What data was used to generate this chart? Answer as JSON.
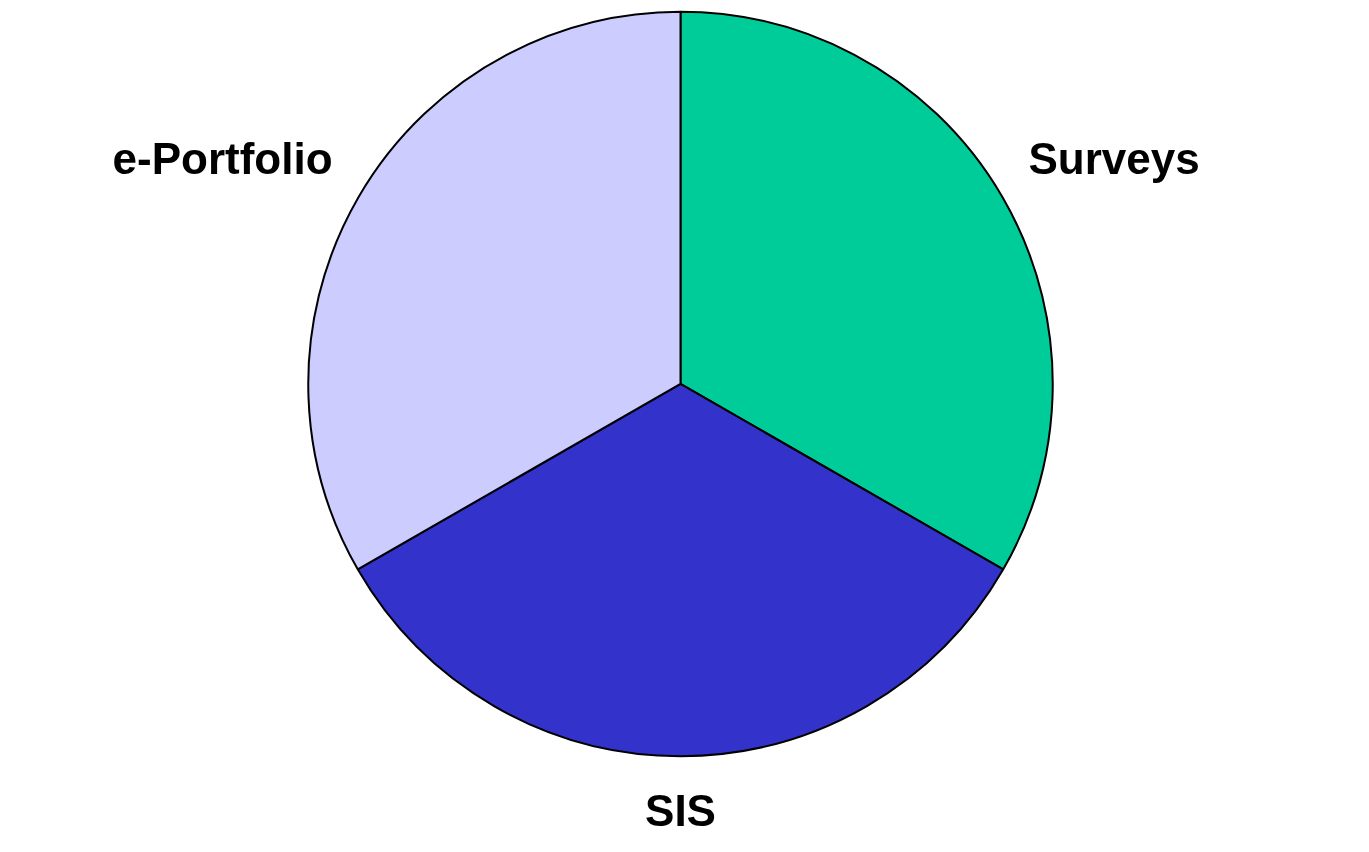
{
  "chart_data": {
    "type": "pie",
    "categories": [
      "Surveys",
      "SIS",
      "e-Portfolio"
    ],
    "values": [
      33.3,
      33.4,
      33.3
    ],
    "colors": [
      "#00cc99",
      "#3333cc",
      "#ccccff"
    ]
  }
}
